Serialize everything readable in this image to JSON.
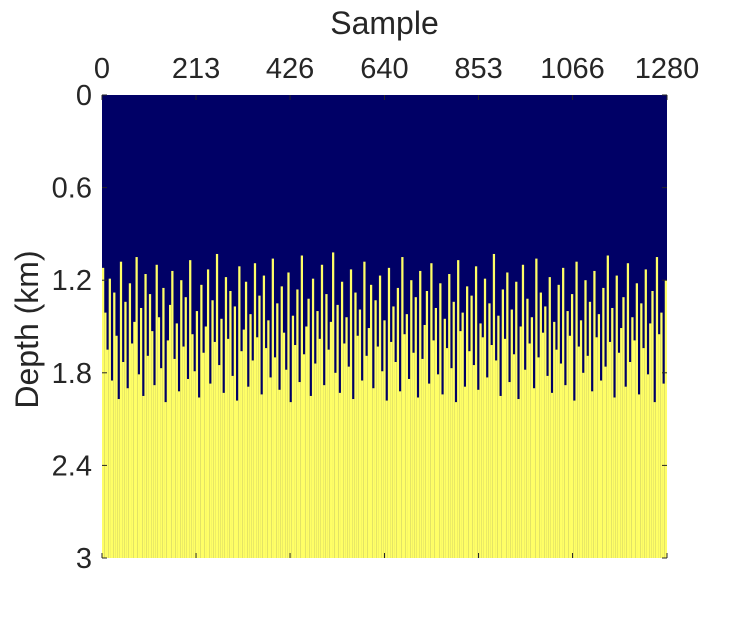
{
  "chart_data": {
    "type": "heatmap",
    "title": "",
    "xlabel": "Sample",
    "ylabel": "Depth (km)",
    "x_axis_position": "top",
    "y_axis_direction": "reversed",
    "xlim": [
      0,
      1280
    ],
    "ylim": [
      0,
      3
    ],
    "xticks": [
      0,
      213,
      426,
      640,
      853,
      1066,
      1280
    ],
    "xtick_labels": [
      "0",
      "213",
      "426",
      "640",
      "853",
      "1066",
      "1280"
    ],
    "yticks": [
      0,
      0.6,
      1.2,
      1.8,
      2.4,
      3
    ],
    "ytick_labels": [
      "0",
      "0.6",
      "1.2",
      "1.8",
      "2.4",
      "3"
    ],
    "colors": {
      "upper_layer": "#000066",
      "lower_layer": "#ffff66"
    },
    "interface_depth_range_km": [
      1.02,
      2.02
    ],
    "interface_depth_km": [
      1.12,
      1.41,
      1.65,
      1.19,
      1.85,
      1.28,
      1.56,
      1.97,
      1.08,
      1.73,
      1.34,
      1.9,
      1.22,
      1.61,
      1.47,
      1.05,
      1.81,
      1.38,
      1.95,
      1.16,
      1.69,
      1.29,
      1.53,
      1.88,
      1.1,
      1.44,
      1.77,
      1.25,
      1.99,
      1.59,
      1.36,
      1.14,
      1.71,
      1.48,
      1.92,
      1.2,
      1.63,
      1.31,
      1.84,
      1.07,
      1.55,
      1.79,
      1.4,
      1.96,
      1.23,
      1.67,
      1.5,
      1.13,
      1.87,
      1.33,
      1.6,
      1.03,
      1.75,
      1.45,
      1.93,
      1.18,
      1.58,
      1.27,
      1.82,
      1.37,
      1.98,
      1.11,
      1.66,
      1.52,
      1.21,
      1.89,
      1.42,
      1.72,
      1.09,
      1.57,
      1.3,
      1.94,
      1.17,
      1.64,
      1.46,
      1.83,
      1.06,
      1.7,
      1.35,
      1.91,
      1.24,
      1.54,
      1.78,
      1.15,
      1.99,
      1.43,
      1.62,
      1.26,
      1.86,
      1.04,
      1.68,
      1.5,
      1.32,
      1.95,
      1.19,
      1.74,
      1.4,
      1.58,
      1.1,
      1.88,
      1.29,
      1.65,
      1.47,
      1.02,
      1.8,
      1.36,
      1.93,
      1.21,
      1.61,
      1.44,
      1.76,
      1.13,
      1.97,
      1.28,
      1.56,
      1.39,
      1.85,
      1.08,
      1.69,
      1.51,
      1.23,
      1.9,
      1.33,
      1.63,
      1.17,
      1.79,
      1.46,
      1.98,
      1.12,
      1.6,
      1.37,
      1.73,
      1.25,
      1.92,
      1.05,
      1.55,
      1.42,
      1.84,
      1.2,
      1.67,
      1.31,
      1.96,
      1.14,
      1.71,
      1.49,
      1.27,
      1.87,
      1.09,
      1.59,
      1.38,
      1.81,
      1.22,
      1.94,
      1.45,
      1.64,
      1.16,
      1.77,
      1.34,
      1.99,
      1.07,
      1.53,
      1.41,
      1.89,
      1.24,
      1.66,
      1.3,
      1.75,
      1.11,
      1.91,
      1.48,
      1.57,
      1.19,
      1.83,
      1.35,
      1.62,
      1.03,
      1.72,
      1.43,
      1.95,
      1.26,
      1.58,
      1.15,
      1.86,
      1.39,
      1.68,
      1.21,
      1.97,
      1.5,
      1.1,
      1.78,
      1.32,
      1.61,
      1.44,
      1.9,
      1.06,
      1.7,
      1.28,
      1.54,
      1.37,
      1.82,
      1.18,
      1.93,
      1.47,
      1.65,
      1.23,
      1.74,
      1.12,
      1.88,
      1.4,
      1.56,
      1.29,
      1.98,
      1.08,
      1.63,
      1.46,
      1.8,
      1.2,
      1.69,
      1.34,
      1.92,
      1.14,
      1.57,
      1.42,
      1.85,
      1.25,
      1.76,
      1.04,
      1.6,
      1.38,
      1.96,
      1.17,
      1.67,
      1.51,
      1.31,
      1.89,
      1.09,
      1.73,
      1.44,
      1.59,
      1.22,
      1.94,
      1.35,
      1.64,
      1.13,
      1.81,
      1.48,
      1.27,
      1.99,
      1.05,
      1.55,
      1.41,
      1.87,
      1.2
    ]
  }
}
